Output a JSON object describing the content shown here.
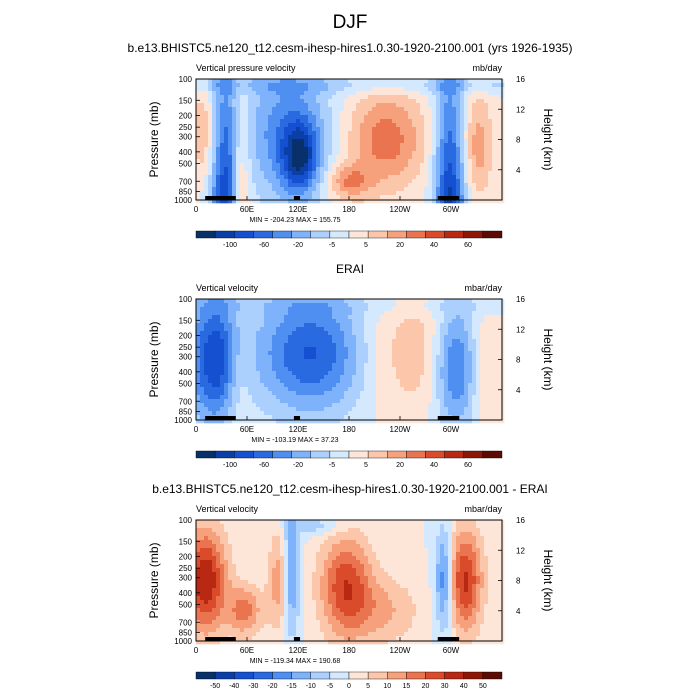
{
  "figure_title": "DJF",
  "colors": {
    "levels": [
      "#08306b",
      "#0b3fa8",
      "#1550d0",
      "#2a6ae0",
      "#4f8ff2",
      "#7eb2fb",
      "#acd0fd",
      "#d4e8fe",
      "#fde6d8",
      "#fbc6aa",
      "#f6a07c",
      "#ea7450",
      "#d94b2a",
      "#b82812",
      "#8d1606",
      "#5c0a02"
    ]
  },
  "chart_data": [
    {
      "type": "heatmap",
      "title": "b.e13.BHISTC5.ne120_t12.cesm-ihesp-hires1.0.30-1920-2100.001 (yrs 1926-1935)",
      "left_label": "Vertical pressure velocity",
      "right_label": "mb/day",
      "ylabel": "Pressure (mb)",
      "y2label": "Height (km)",
      "x_ticks": [
        "0",
        "60E",
        "120E",
        "180",
        "120W",
        "60W"
      ],
      "y_ticks": [
        "100",
        "150",
        "200",
        "250",
        "300",
        "400",
        "500",
        "700",
        "850",
        "1000"
      ],
      "y2_ticks": [
        "16",
        "12",
        "8",
        "4"
      ],
      "minmax": "MIN = -204.23  MAX = 155.75",
      "colorbar_labels": [
        "-100",
        "-60",
        "-20",
        "-5",
        "5",
        "20",
        "40",
        "60"
      ],
      "min": -204.23,
      "max": 155.75
    },
    {
      "type": "heatmap",
      "title": "ERAI",
      "left_label": "Vertical velocity",
      "right_label": "mbar/day",
      "ylabel": "Pressure (mb)",
      "y2label": "Height (km)",
      "x_ticks": [
        "0",
        "60E",
        "120E",
        "180",
        "120W",
        "60W"
      ],
      "y_ticks": [
        "100",
        "150",
        "200",
        "250",
        "300",
        "400",
        "500",
        "700",
        "850",
        "1000"
      ],
      "y2_ticks": [
        "16",
        "12",
        "8",
        "4"
      ],
      "minmax": "MIN = -103.19  MAX = 37.23",
      "colorbar_labels": [
        "-100",
        "-60",
        "-20",
        "-5",
        "5",
        "20",
        "40",
        "60"
      ],
      "min": -103.19,
      "max": 37.23
    },
    {
      "type": "heatmap",
      "title": "b.e13.BHISTC5.ne120_t12.cesm-ihesp-hires1.0.30-1920-2100.001 - ERAI",
      "left_label": "Vertical velocity",
      "right_label": "mbar/day",
      "ylabel": "Pressure (mb)",
      "y2label": "Height (km)",
      "x_ticks": [
        "0",
        "60E",
        "120E",
        "180",
        "120W",
        "60W"
      ],
      "y_ticks": [
        "100",
        "150",
        "200",
        "250",
        "300",
        "400",
        "500",
        "700",
        "850",
        "1000"
      ],
      "y2_ticks": [
        "16",
        "12",
        "8",
        "4"
      ],
      "minmax": "MIN = -119.34  MAX = 190.68",
      "colorbar_labels": [
        "-50",
        "-40",
        "-30",
        "-20",
        "-15",
        "-10",
        "-5",
        "0",
        "5",
        "10",
        "15",
        "20",
        "30",
        "40",
        "50"
      ],
      "min": -119.34,
      "max": 190.68
    }
  ]
}
